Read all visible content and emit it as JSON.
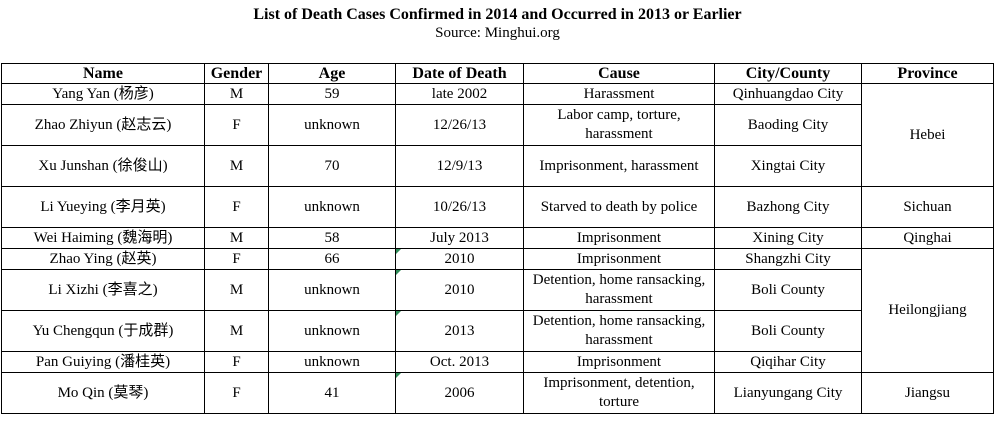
{
  "title": "List of Death Cases Confirmed in 2014 and Occurred in 2013 or Earlier",
  "subtitle": "Source: Minghui.org",
  "headers": [
    "Name",
    "Gender",
    "Age",
    "Date of Death",
    "Cause",
    "City/County",
    "Province"
  ],
  "rows": [
    {
      "name": "Yang Yan (杨彦)",
      "gender": "M",
      "age": "59",
      "date": "late 2002",
      "cause": "Harassment",
      "city": "Qinhuangdao City"
    },
    {
      "name": "Zhao Zhiyun (赵志云)",
      "gender": "F",
      "age": "unknown",
      "date": "12/26/13",
      "cause": "Labor camp, torture, harassment",
      "city": "Baoding City"
    },
    {
      "name": "Xu Junshan (徐俊山)",
      "gender": "M",
      "age": "70",
      "date": "12/9/13",
      "cause": "Imprisonment, harassment",
      "city": "Xingtai City"
    },
    {
      "name": "Li Yueying (李月英)",
      "gender": "F",
      "age": "unknown",
      "date": "10/26/13",
      "cause": "Starved to death by police",
      "city": "Bazhong City"
    },
    {
      "name": "Wei Haiming (魏海明)",
      "gender": "M",
      "age": "58",
      "date": "July 2013",
      "cause": "Imprisonment",
      "city": "Xining City"
    },
    {
      "name": "Zhao Ying (赵英)",
      "gender": "F",
      "age": "66",
      "date": "2010",
      "cause": "Imprisonment",
      "city": "Shangzhi City"
    },
    {
      "name": "Li Xizhi (李喜之)",
      "gender": "M",
      "age": "unknown",
      "date": "2010",
      "cause": "Detention, home ransacking, harassment",
      "city": "Boli County"
    },
    {
      "name": "Yu Chengqun (于成群)",
      "gender": "M",
      "age": "unknown",
      "date": "2013",
      "cause": "Detention, home ransacking, harassment",
      "city": "Boli County"
    },
    {
      "name": "Pan Guiying (潘桂英)",
      "gender": "F",
      "age": "unknown",
      "date": "Oct. 2013",
      "cause": "Imprisonment",
      "city": "Qiqihar City"
    },
    {
      "name": "Mo Qin (莫琴)",
      "gender": "F",
      "age": "41",
      "date": "2006",
      "cause": "Imprisonment, detention, torture",
      "city": "Lianyungang City"
    }
  ],
  "provinces": [
    "Hebei",
    "Sichuan",
    "Qinghai",
    "Heilongjiang",
    "Jiangsu"
  ]
}
